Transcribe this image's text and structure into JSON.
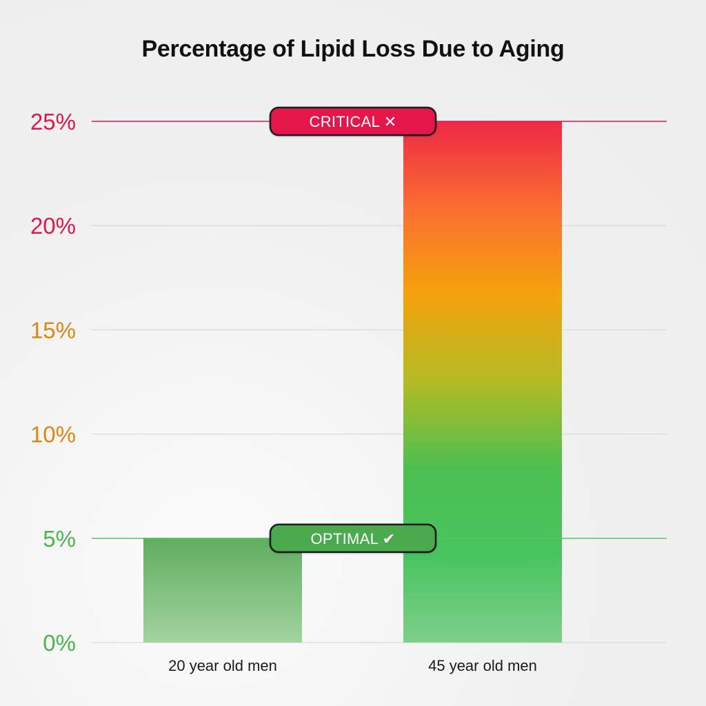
{
  "chart_data": {
    "type": "bar",
    "title": "Percentage of Lipid Loss Due to Aging",
    "categories": [
      "20 year old men",
      "45 year old men"
    ],
    "values": [
      5,
      25
    ],
    "ylim": [
      0,
      25
    ],
    "yticks": [
      {
        "value": 0,
        "label": "0%",
        "color": "#4cb34f"
      },
      {
        "value": 5,
        "label": "5%",
        "color": "#4cb34f"
      },
      {
        "value": 10,
        "label": "10%",
        "color": "#d9890f"
      },
      {
        "value": 15,
        "label": "15%",
        "color": "#d9890f"
      },
      {
        "value": 20,
        "label": "20%",
        "color": "#e0174a"
      },
      {
        "value": 25,
        "label": "25%",
        "color": "#e0174a"
      }
    ],
    "grid": true,
    "reference_lines": [
      {
        "value": 25,
        "label": "CRITICAL",
        "symbol": "✕",
        "color": "#e5144a",
        "line_color": "#e5144a"
      },
      {
        "value": 5,
        "label": "OPTIMAL",
        "symbol": "✔",
        "color": "#4aab4e",
        "line_color": "#5cbf60"
      }
    ],
    "bar_colors": {
      "bar_1": {
        "top": "#5fae5f",
        "bottom": "#a3d3a0"
      },
      "bar_2": {
        "stops": [
          "#ee2846",
          "#fb6e32",
          "#f5a20c",
          "#b2bb26",
          "#4cbf50",
          "#48c45f",
          "#7ecf8a"
        ]
      }
    },
    "grid_color": "#d3d3d3"
  }
}
